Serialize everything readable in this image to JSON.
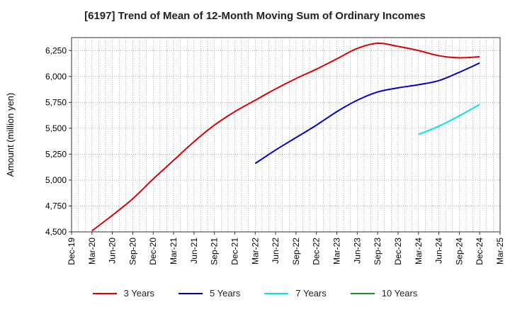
{
  "chart_data": {
    "type": "line",
    "title": "[6197]  Trend of Mean of 12-Month Moving Sum of Ordinary Incomes",
    "xlabel": "",
    "ylabel": "Amount (million yen)",
    "ylim": [
      4500,
      6375
    ],
    "yticks": [
      4500,
      4750,
      5000,
      5250,
      5500,
      5750,
      6000,
      6250
    ],
    "ytick_labels": [
      "4,500",
      "4,750",
      "5,000",
      "5,250",
      "5,500",
      "5,750",
      "6,000",
      "6,250"
    ],
    "x_categories": [
      "Dec-19",
      "Mar-20",
      "Jun-20",
      "Sep-20",
      "Dec-20",
      "Mar-21",
      "Jun-21",
      "Sep-21",
      "Dec-21",
      "Mar-22",
      "Jun-22",
      "Sep-22",
      "Dec-22",
      "Mar-23",
      "Jun-23",
      "Sep-23",
      "Dec-23",
      "Mar-24",
      "Jun-24",
      "Sep-24",
      "Dec-24",
      "Mar-25"
    ],
    "grid": true,
    "legend_position": "bottom",
    "series": [
      {
        "name": "3 Years",
        "color": "#dd0000",
        "points": [
          {
            "x": "Mar-20",
            "y": 4510
          },
          {
            "x": "Jun-20",
            "y": 4660
          },
          {
            "x": "Sep-20",
            "y": 4820
          },
          {
            "x": "Dec-20",
            "y": 5010
          },
          {
            "x": "Mar-21",
            "y": 5190
          },
          {
            "x": "Jun-21",
            "y": 5370
          },
          {
            "x": "Sep-21",
            "y": 5530
          },
          {
            "x": "Dec-21",
            "y": 5660
          },
          {
            "x": "Mar-22",
            "y": 5770
          },
          {
            "x": "Jun-22",
            "y": 5880
          },
          {
            "x": "Sep-22",
            "y": 5980
          },
          {
            "x": "Dec-22",
            "y": 6070
          },
          {
            "x": "Mar-23",
            "y": 6170
          },
          {
            "x": "Jun-23",
            "y": 6270
          },
          {
            "x": "Sep-23",
            "y": 6320
          },
          {
            "x": "Dec-23",
            "y": 6290
          },
          {
            "x": "Mar-24",
            "y": 6250
          },
          {
            "x": "Jun-24",
            "y": 6200
          },
          {
            "x": "Sep-24",
            "y": 6180
          },
          {
            "x": "Dec-24",
            "y": 6190
          }
        ]
      },
      {
        "name": "5 Years",
        "color": "#0000cc",
        "points": [
          {
            "x": "Mar-22",
            "y": 5160
          },
          {
            "x": "Jun-22",
            "y": 5290
          },
          {
            "x": "Sep-22",
            "y": 5410
          },
          {
            "x": "Dec-22",
            "y": 5530
          },
          {
            "x": "Mar-23",
            "y": 5660
          },
          {
            "x": "Jun-23",
            "y": 5770
          },
          {
            "x": "Sep-23",
            "y": 5850
          },
          {
            "x": "Dec-23",
            "y": 5890
          },
          {
            "x": "Mar-24",
            "y": 5920
          },
          {
            "x": "Jun-24",
            "y": 5960
          },
          {
            "x": "Sep-24",
            "y": 6040
          },
          {
            "x": "Dec-24",
            "y": 6130
          }
        ]
      },
      {
        "name": "7 Years",
        "color": "#00e5e5",
        "points": [
          {
            "x": "Mar-24",
            "y": 5440
          },
          {
            "x": "Jun-24",
            "y": 5520
          },
          {
            "x": "Sep-24",
            "y": 5620
          },
          {
            "x": "Dec-24",
            "y": 5730
          }
        ]
      },
      {
        "name": "10 Years",
        "color": "#228b22",
        "points": []
      }
    ]
  }
}
